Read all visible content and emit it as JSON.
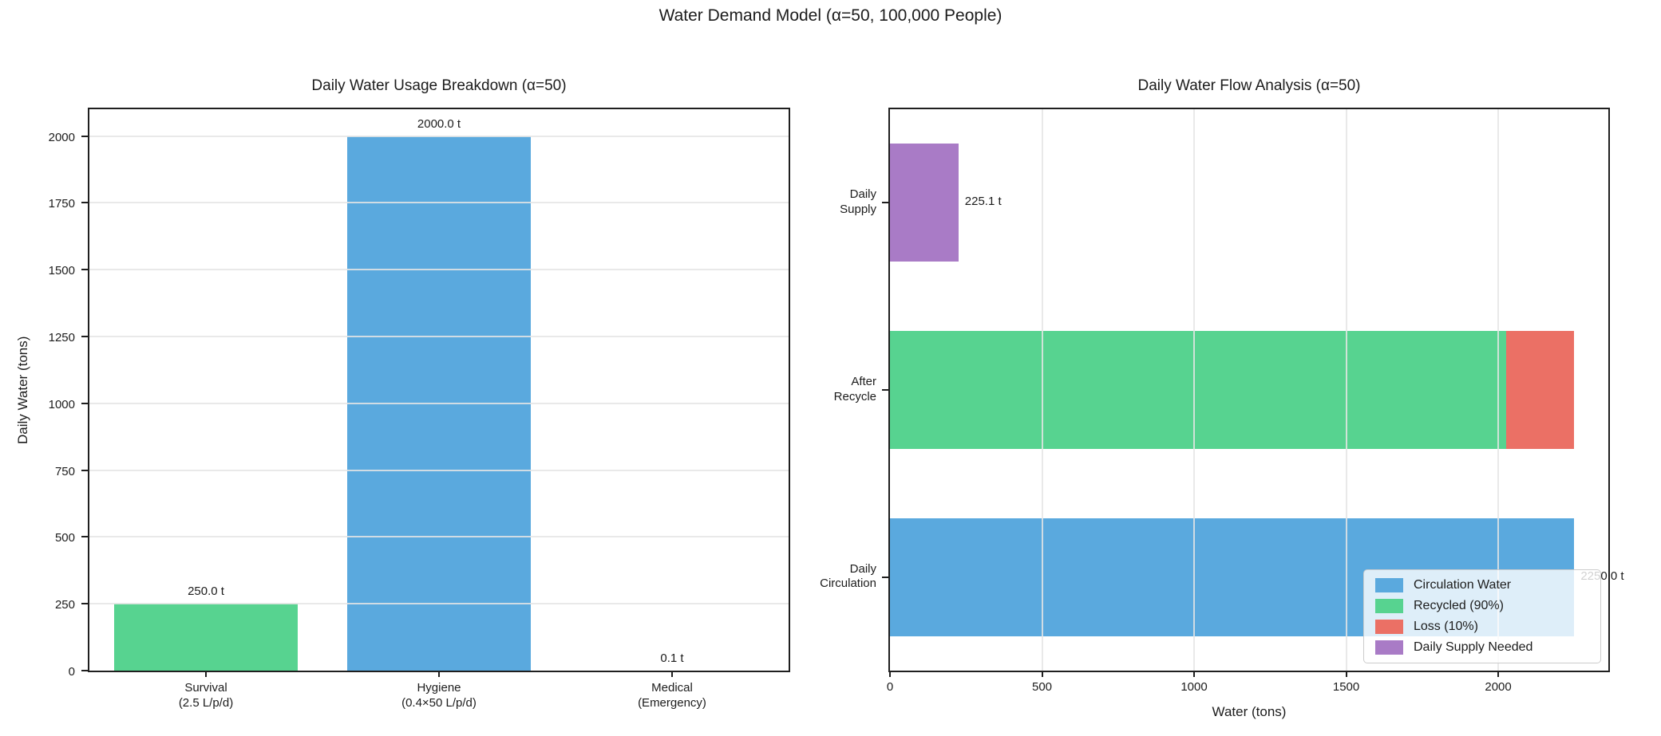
{
  "figure": {
    "title": "Water Demand Model (α=50, 100,000 People)"
  },
  "colors": {
    "blue": "#5aa9de",
    "green": "#57d390",
    "red": "#eb7065",
    "purple": "#a97bc6",
    "grid": "#e5e5e5",
    "spine": "#1f1f1f"
  },
  "chart_data": [
    {
      "type": "bar",
      "title": "Daily Water Usage Breakdown (α=50)",
      "ylabel": "Daily Water (tons)",
      "categories": [
        "Survival\n(2.5 L/p/d)",
        "Hygiene\n(0.4×50 L/p/d)",
        "Medical\n(Emergency)"
      ],
      "values": [
        250.0,
        2000.0,
        0.1
      ],
      "bar_labels": [
        "250.0 t",
        "2000.0 t",
        "0.1 t"
      ],
      "bar_colors": [
        "green",
        "blue",
        "red"
      ],
      "yticks": [
        0,
        250,
        500,
        750,
        1000,
        1250,
        1500,
        1750,
        2000
      ],
      "ylim": [
        0,
        2100
      ],
      "grid": "horizontal"
    },
    {
      "type": "bar-horizontal-stacked",
      "title": "Daily Water Flow Analysis (α=50)",
      "xlabel": "Water (tons)",
      "categories": [
        "Daily\nSupply",
        "After\nRecycle",
        "Daily\nCirculation"
      ],
      "series": [
        {
          "name": "Circulation Water",
          "color": "blue",
          "values": [
            0,
            0,
            2250.0
          ]
        },
        {
          "name": "Recycled (90%)",
          "color": "green",
          "values": [
            0,
            2025.0,
            0
          ]
        },
        {
          "name": "Loss (10%)",
          "color": "red",
          "values": [
            0,
            225.0,
            0
          ]
        },
        {
          "name": "Daily Supply Needed",
          "color": "purple",
          "values": [
            225.1,
            0,
            0
          ]
        }
      ],
      "bar_labels": [
        "225.1 t",
        "",
        "2250.0 t"
      ],
      "xticks": [
        0,
        500,
        1000,
        1500,
        2000
      ],
      "xlim": [
        0,
        2362
      ],
      "grid": "vertical",
      "legend_position": "lower right"
    }
  ]
}
